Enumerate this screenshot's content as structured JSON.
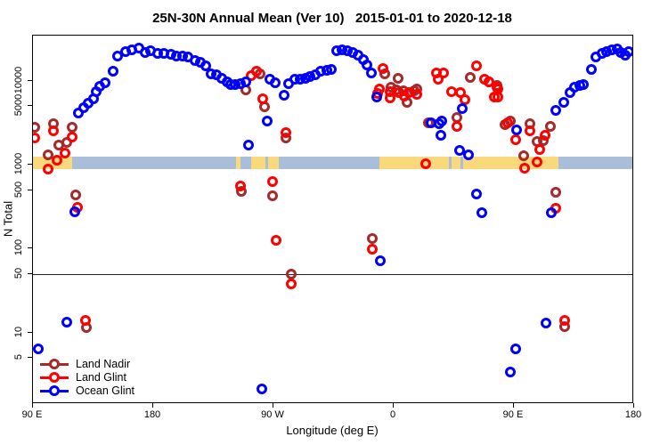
{
  "title": "25N-30N Annual Mean (Ver 10)   2015-01-01 to 2020-12-18",
  "axes": {
    "x_label": "Longitude (deg E)",
    "y_label": "N Total",
    "x_domain": [
      90,
      540
    ],
    "y_domain": [
      1.4,
      34800
    ],
    "y_scale": "log",
    "x_ticks": [
      {
        "v": 90,
        "label": "90 E"
      },
      {
        "v": 180,
        "label": "180"
      },
      {
        "v": 270,
        "label": "90 W"
      },
      {
        "v": 360,
        "label": "0"
      },
      {
        "v": 450,
        "label": "90 E"
      },
      {
        "v": 540,
        "label": "180"
      }
    ],
    "y_ticks": [
      {
        "v": 5,
        "label": "5"
      },
      {
        "v": 10,
        "label": "10"
      },
      {
        "v": 50,
        "label": "50"
      },
      {
        "v": 100,
        "label": "100"
      },
      {
        "v": 500,
        "label": "500"
      },
      {
        "v": 1000,
        "label": "1000"
      },
      {
        "v": 5000,
        "label": "5000"
      },
      {
        "v": 10000,
        "label": "10000"
      }
    ],
    "ref_line_value": 50
  },
  "legend": [
    {
      "name": "Land Nadir",
      "color": "#A52A2A"
    },
    {
      "name": "Land Glint",
      "color": "#FF0000"
    },
    {
      "name": "Ocean Glint",
      "color": "#0000FF"
    }
  ],
  "surface_band": {
    "description": "surface-type strip drawn near N=1000 showing land/ocean vs longitude",
    "top_value": 1250,
    "bottom_value": 900,
    "land_color": "#FAD87C",
    "ocean_color": "#A9BED9",
    "segments": [
      {
        "from": 90,
        "to": 119,
        "type": "land"
      },
      {
        "from": 119,
        "to": 242,
        "type": "ocean"
      },
      {
        "from": 242,
        "to": 245,
        "type": "land"
      },
      {
        "from": 245,
        "to": 253,
        "type": "ocean"
      },
      {
        "from": 253,
        "to": 264,
        "type": "land"
      },
      {
        "from": 264,
        "to": 266,
        "type": "ocean"
      },
      {
        "from": 266,
        "to": 274,
        "type": "land"
      },
      {
        "from": 274,
        "to": 349,
        "type": "ocean"
      },
      {
        "from": 349,
        "to": 401,
        "type": "land"
      },
      {
        "from": 401,
        "to": 403,
        "type": "ocean"
      },
      {
        "from": 403,
        "to": 410,
        "type": "land"
      },
      {
        "from": 410,
        "to": 412,
        "type": "ocean"
      },
      {
        "from": 412,
        "to": 483,
        "type": "land"
      },
      {
        "from": 483,
        "to": 540,
        "type": "ocean"
      }
    ]
  },
  "chart_data": {
    "type": "scatter",
    "title": "25N-30N Annual Mean (Ver 10)   2015-01-01 to 2020-12-18",
    "xlabel": "Longitude (deg E)",
    "ylabel": "N Total",
    "x_unit": "degrees east, axis wraps 90E -> 180 -> 90W -> 0 -> 90E -> 180 (stored 90..540)",
    "legend_position": "bottom-left inside plot",
    "grid": false,
    "series": [
      {
        "name": "Land Nadir",
        "color": "#A52A2A",
        "points": [
          [
            91,
            2810
          ],
          [
            105,
            3090
          ],
          [
            119,
            2810
          ],
          [
            109,
            1720
          ],
          [
            115,
            1850
          ],
          [
            101,
            1320
          ],
          [
            122,
            438
          ],
          [
            130,
            11.5
          ],
          [
            260,
            12200
          ],
          [
            249,
            7830
          ],
          [
            263,
            4920
          ],
          [
            279,
            2090
          ],
          [
            246,
            483
          ],
          [
            269,
            428
          ],
          [
            283,
            50
          ],
          [
            353,
            12200
          ],
          [
            363,
            10800
          ],
          [
            358,
            8430
          ],
          [
            362,
            7830
          ],
          [
            367,
            7640
          ],
          [
            370,
            5560
          ],
          [
            375,
            7640
          ],
          [
            377,
            8020
          ],
          [
            386,
            3170
          ],
          [
            407,
            3670
          ],
          [
            417,
            11000
          ],
          [
            431,
            9750
          ],
          [
            437,
            8850
          ],
          [
            344,
            132
          ],
          [
            443,
            3020
          ],
          [
            447,
            3330
          ],
          [
            462,
            3090
          ],
          [
            467,
            1900
          ],
          [
            472,
            1950
          ],
          [
            477,
            2880
          ],
          [
            457,
            1280
          ],
          [
            481,
            471
          ],
          [
            488,
            11.7
          ]
        ]
      },
      {
        "name": "Land Glint",
        "color": "#FF0000",
        "points": [
          [
            91,
            2090
          ],
          [
            105,
            2550
          ],
          [
            119,
            2140
          ],
          [
            114,
            1380
          ],
          [
            108,
            1140
          ],
          [
            101,
            890
          ],
          [
            123,
            311
          ],
          [
            129,
            13.9
          ],
          [
            257,
            13100
          ],
          [
            253,
            11600
          ],
          [
            262,
            6130
          ],
          [
            279,
            2420
          ],
          [
            269,
            630
          ],
          [
            245,
            560
          ],
          [
            272,
            126
          ],
          [
            283,
            38
          ],
          [
            352,
            14100
          ],
          [
            349,
            8020
          ],
          [
            348,
            7100
          ],
          [
            357,
            7460
          ],
          [
            357,
            6290
          ],
          [
            364,
            7280
          ],
          [
            368,
            6600
          ],
          [
            371,
            7280
          ],
          [
            377,
            6930
          ],
          [
            392,
            12500
          ],
          [
            393,
            10500
          ],
          [
            397,
            12500
          ],
          [
            403,
            7460
          ],
          [
            407,
            2880
          ],
          [
            410,
            7280
          ],
          [
            413,
            5980
          ],
          [
            422,
            15100
          ],
          [
            428,
            10500
          ],
          [
            431,
            9750
          ],
          [
            435,
            6440
          ],
          [
            437,
            8430
          ],
          [
            384,
            1030
          ],
          [
            344,
            99
          ],
          [
            438,
            8020
          ],
          [
            438,
            6440
          ],
          [
            445,
            3170
          ],
          [
            451,
            1990
          ],
          [
            462,
            2550
          ],
          [
            473,
            2250
          ],
          [
            469,
            1520
          ],
          [
            467,
            1080
          ],
          [
            458,
            910
          ],
          [
            481,
            303
          ],
          [
            488,
            13.9
          ]
        ]
      },
      {
        "name": "Ocean Glint",
        "color": "#0000FF",
        "points": [
          [
            124,
            4150
          ],
          [
            128,
            4810
          ],
          [
            131,
            5430
          ],
          [
            135,
            6130
          ],
          [
            137,
            7460
          ],
          [
            140,
            8640
          ],
          [
            144,
            9530
          ],
          [
            150,
            13100
          ],
          [
            153,
            19800
          ],
          [
            159,
            22400
          ],
          [
            164,
            23500
          ],
          [
            169,
            24700
          ],
          [
            174,
            21900
          ],
          [
            178,
            23000
          ],
          [
            183,
            21300
          ],
          [
            188,
            21300
          ],
          [
            193,
            20800
          ],
          [
            197,
            19800
          ],
          [
            202,
            19800
          ],
          [
            206,
            19400
          ],
          [
            211,
            17600
          ],
          [
            215,
            16700
          ],
          [
            219,
            15100
          ],
          [
            223,
            12200
          ],
          [
            227,
            11900
          ],
          [
            231,
            10800
          ],
          [
            235,
            9750
          ],
          [
            238,
            9070
          ],
          [
            241,
            9070
          ],
          [
            245,
            9290
          ],
          [
            249,
            9750
          ],
          [
            251,
            1720
          ],
          [
            265,
            3330
          ],
          [
            267,
            10500
          ],
          [
            271,
            9530
          ],
          [
            278,
            6760
          ],
          [
            281,
            9290
          ],
          [
            286,
            10500
          ],
          [
            290,
            10500
          ],
          [
            294,
            10800
          ],
          [
            297,
            11300
          ],
          [
            301,
            11900
          ],
          [
            305,
            13100
          ],
          [
            310,
            13400
          ],
          [
            313,
            13700
          ],
          [
            317,
            23000
          ],
          [
            321,
            23500
          ],
          [
            325,
            23000
          ],
          [
            329,
            21900
          ],
          [
            333,
            20300
          ],
          [
            337,
            18000
          ],
          [
            340,
            15500
          ],
          [
            343,
            12500
          ],
          [
            347,
            6440
          ],
          [
            388,
            3170
          ],
          [
            394,
            3090
          ],
          [
            395,
            2250
          ],
          [
            396,
            3330
          ],
          [
            411,
            4690
          ],
          [
            409,
            1490
          ],
          [
            416,
            1320
          ],
          [
            422,
            449
          ],
          [
            426,
            269
          ],
          [
            350,
            72
          ],
          [
            261,
            2.1
          ],
          [
            115,
            13.3
          ],
          [
            94,
            6.4
          ],
          [
            121,
            275
          ],
          [
            452,
            2610
          ],
          [
            478,
            269
          ],
          [
            474,
            12.9
          ],
          [
            451,
            6.4
          ],
          [
            447,
            3.4
          ],
          [
            481,
            4470
          ],
          [
            487,
            5560
          ],
          [
            492,
            7280
          ],
          [
            495,
            8430
          ],
          [
            499,
            8850
          ],
          [
            502,
            9070
          ],
          [
            508,
            13700
          ],
          [
            511,
            19400
          ],
          [
            516,
            21300
          ],
          [
            519,
            22400
          ],
          [
            523,
            23500
          ],
          [
            527,
            24100
          ],
          [
            530,
            21900
          ],
          [
            533,
            20300
          ],
          [
            536,
            22400
          ]
        ]
      }
    ]
  }
}
